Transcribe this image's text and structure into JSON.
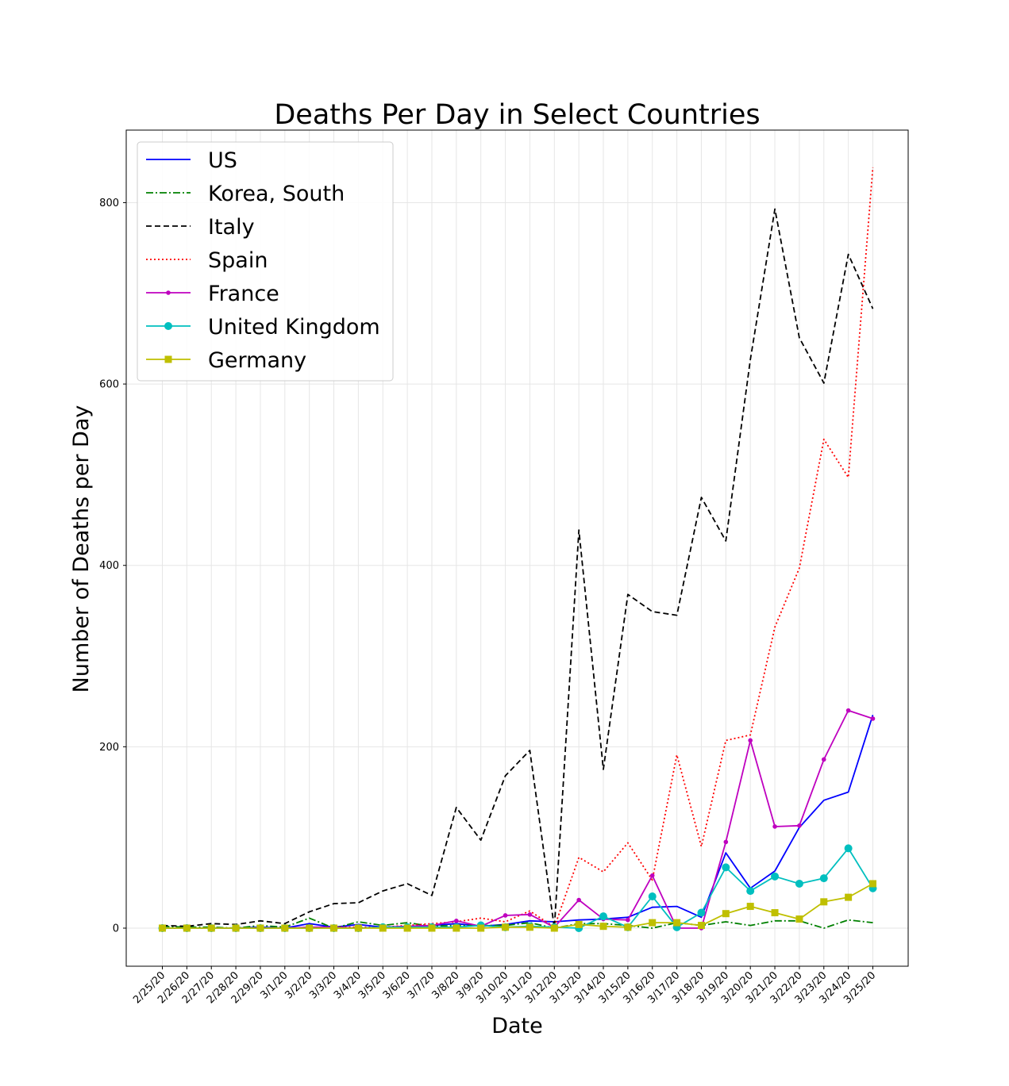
{
  "chart_data": {
    "type": "line",
    "title": "Deaths Per Day in Select Countries",
    "xlabel": "Date",
    "ylabel": "Number of Deaths per Day",
    "ylim": [
      -42,
      880
    ],
    "yticks": [
      0,
      200,
      400,
      600,
      800
    ],
    "grid": true,
    "legend_position": "top-left",
    "categories": [
      "2/25/20",
      "2/26/20",
      "2/27/20",
      "2/28/20",
      "2/29/20",
      "3/1/20",
      "3/2/20",
      "3/3/20",
      "3/4/20",
      "3/5/20",
      "3/6/20",
      "3/7/20",
      "3/8/20",
      "3/9/20",
      "3/10/20",
      "3/11/20",
      "3/12/20",
      "3/13/20",
      "3/14/20",
      "3/15/20",
      "3/16/20",
      "3/17/20",
      "3/18/20",
      "3/19/20",
      "3/20/20",
      "3/21/20",
      "3/22/20",
      "3/23/20",
      "3/24/20",
      "3/25/20"
    ],
    "series": [
      {
        "name": "US",
        "color": "#0000ff",
        "style": "solid",
        "marker": "none",
        "values": [
          0,
          0,
          0,
          0,
          1,
          0,
          5,
          1,
          4,
          1,
          2,
          3,
          5,
          2,
          4,
          8,
          7,
          9,
          10,
          12,
          23,
          24,
          12,
          83,
          44,
          63,
          111,
          141,
          150,
          235
        ]
      },
      {
        "name": "Korea, South",
        "color": "#008000",
        "style": "dashdot",
        "marker": "none",
        "values": [
          2,
          1,
          1,
          0,
          3,
          1,
          11,
          0,
          7,
          3,
          6,
          2,
          3,
          3,
          3,
          6,
          0,
          5,
          5,
          3,
          0,
          6,
          3,
          7,
          3,
          8,
          8,
          0,
          9,
          6
        ]
      },
      {
        "name": "Italy",
        "color": "#000000",
        "style": "dashed",
        "marker": "none",
        "values": [
          3,
          2,
          5,
          4,
          8,
          5,
          18,
          27,
          28,
          41,
          49,
          36,
          133,
          97,
          168,
          196,
          0,
          439,
          175,
          368,
          349,
          345,
          475,
          427,
          627,
          793,
          651,
          601,
          743,
          683
        ]
      },
      {
        "name": "Spain",
        "color": "#ff0000",
        "style": "dotted",
        "marker": "none",
        "values": [
          0,
          0,
          0,
          0,
          0,
          0,
          0,
          1,
          1,
          1,
          3,
          5,
          7,
          11,
          7,
          19,
          1,
          78,
          62,
          94,
          53,
          191,
          90,
          207,
          213,
          332,
          397,
          539,
          497,
          839
        ]
      },
      {
        "name": "France",
        "color": "#bf00bf",
        "style": "solid",
        "marker": "smallcircle",
        "values": [
          0,
          0,
          0,
          0,
          0,
          0,
          1,
          1,
          0,
          1,
          2,
          3,
          8,
          2,
          14,
          15,
          1,
          31,
          10,
          9,
          58,
          0,
          0,
          95,
          207,
          112,
          113,
          186,
          240,
          231
        ]
      },
      {
        "name": "United Kingdom",
        "color": "#00bfbf",
        "style": "solid",
        "marker": "circle",
        "values": [
          0,
          0,
          0,
          0,
          0,
          0,
          0,
          0,
          0,
          1,
          1,
          1,
          1,
          3,
          1,
          2,
          1,
          0,
          13,
          1,
          35,
          1,
          17,
          67,
          41,
          57,
          49,
          55,
          88,
          44
        ]
      },
      {
        "name": "Germany",
        "color": "#bfbf00",
        "style": "solid",
        "marker": "square",
        "values": [
          0,
          0,
          0,
          0,
          0,
          0,
          0,
          0,
          0,
          0,
          0,
          0,
          0,
          0,
          1,
          1,
          0,
          4,
          2,
          1,
          6,
          6,
          3,
          16,
          24,
          17,
          10,
          29,
          34,
          49
        ]
      }
    ]
  }
}
